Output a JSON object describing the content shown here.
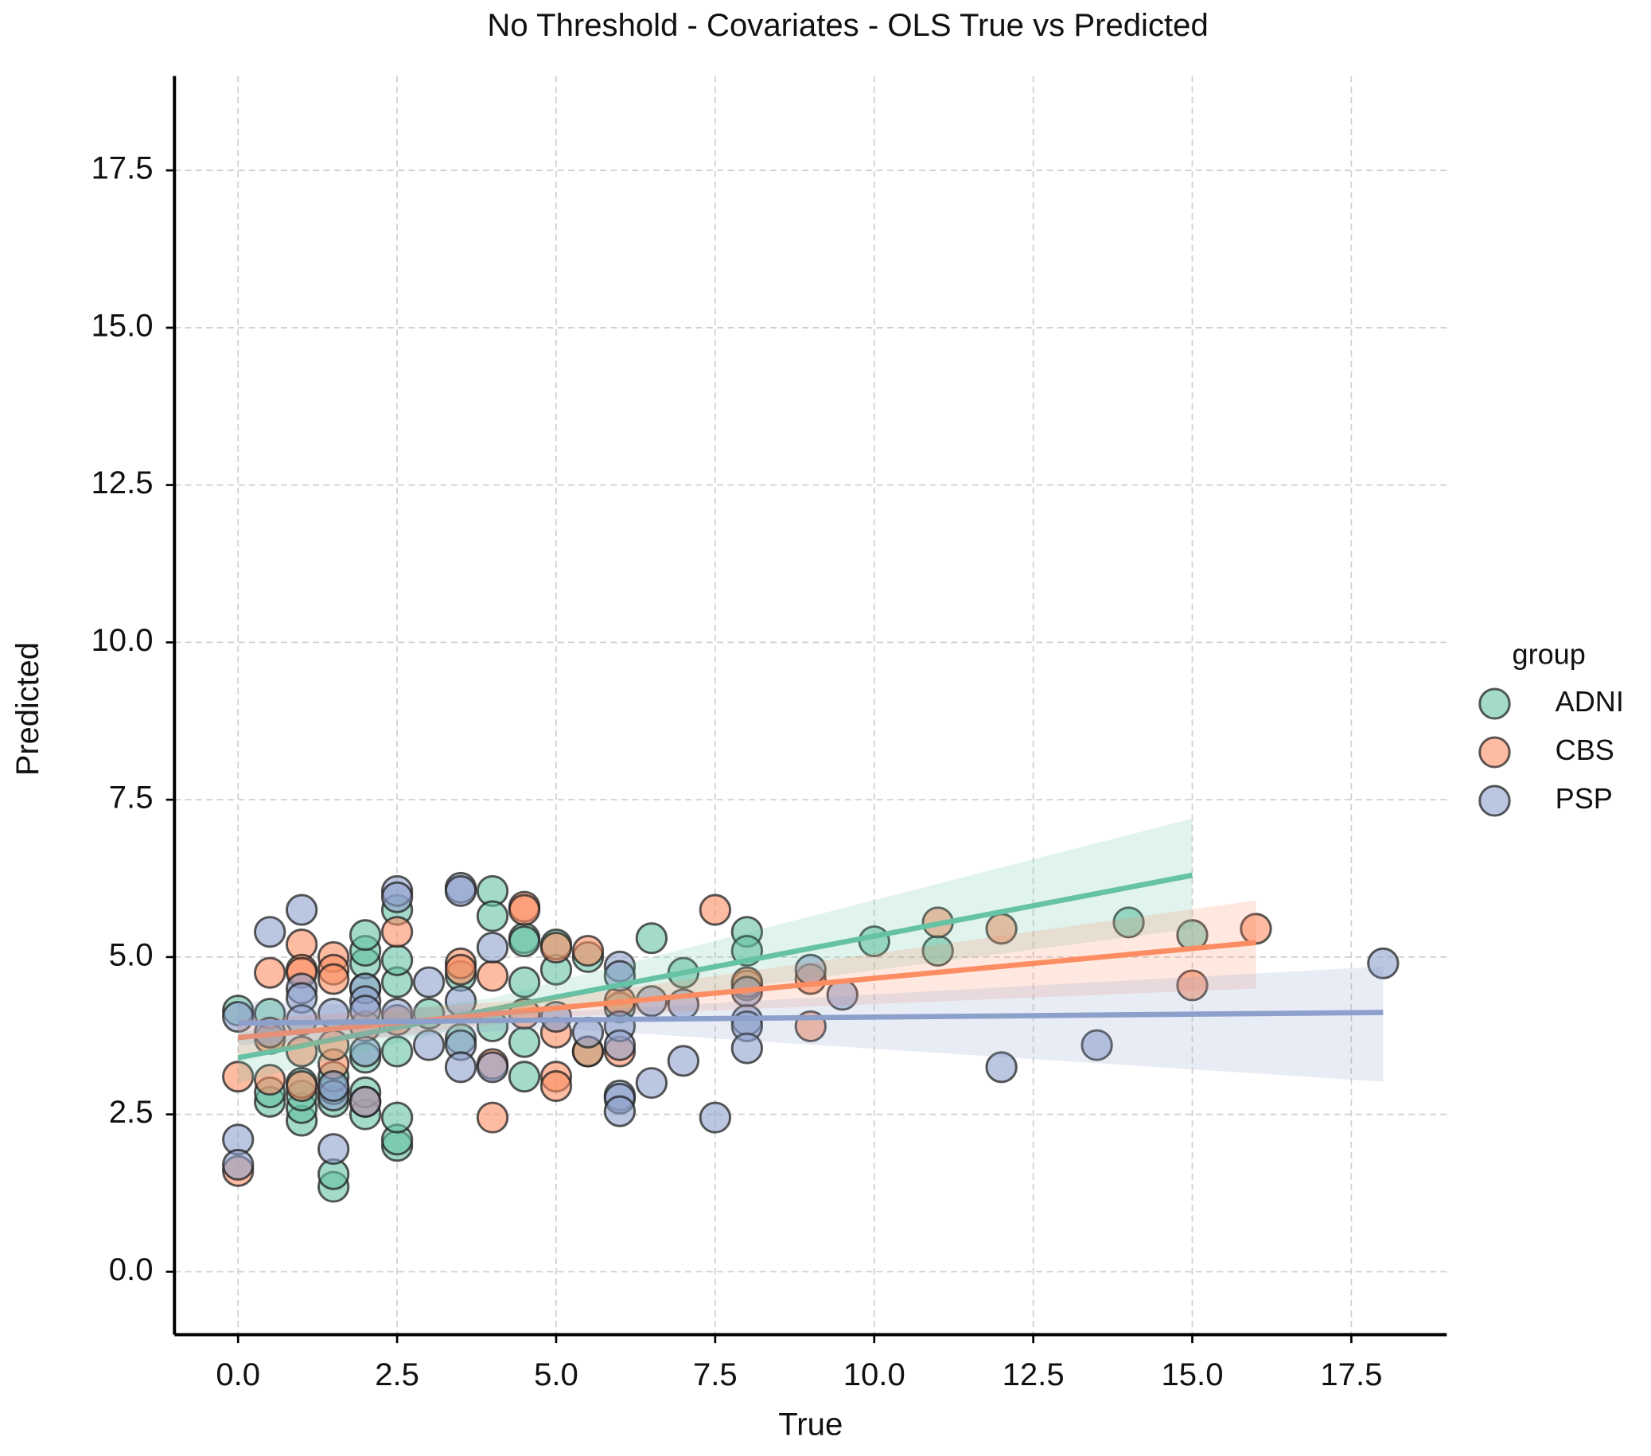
{
  "chart_data": {
    "type": "scatter",
    "title": "No Threshold - Covariates - OLS True vs Predicted",
    "x_label": "True",
    "y_label": "Predicted",
    "legend_title": "group",
    "legend_position": "right",
    "grid": true,
    "xlim": [
      -1,
      19
    ],
    "ylim": [
      -1,
      19
    ],
    "xticks": [
      {
        "value": 0,
        "label": "0.0"
      },
      2.5,
      {
        "value": 5,
        "label": "5.0"
      },
      7.5,
      {
        "value": 10,
        "label": "10.0"
      },
      12.5,
      {
        "value": 15,
        "label": "15.0"
      },
      17.5
    ],
    "yticks": [
      {
        "value": 0,
        "label": "0.0"
      },
      2.5,
      {
        "value": 5,
        "label": "5.0"
      },
      7.5,
      {
        "value": 10,
        "label": "10.0"
      },
      12.5,
      {
        "value": 15,
        "label": "15.0"
      },
      17.5
    ],
    "series": [
      {
        "name": "ADNI",
        "color": "#66c2a5",
        "x": [
          0,
          0.5,
          0.5,
          0.5,
          1,
          1,
          1,
          1,
          1.5,
          1.5,
          1.5,
          1.5,
          1.5,
          2,
          2,
          2,
          2,
          2,
          2,
          2,
          2.5,
          2.5,
          2.5,
          2.5,
          2.5,
          2.5,
          2.5,
          3,
          3.5,
          3.5,
          4,
          4,
          4,
          4.5,
          4.5,
          4.5,
          4.5,
          4.5,
          5,
          5,
          5.5,
          5.5,
          6,
          6.5,
          7,
          8,
          8,
          8,
          10,
          11,
          14,
          15
        ],
        "values": [
          4.15,
          4.1,
          2.7,
          2.85,
          2.4,
          2.6,
          2.8,
          3.0,
          1.35,
          1.55,
          2.7,
          2.9,
          3.1,
          2.5,
          2.85,
          3.4,
          4.5,
          4.9,
          5.1,
          5.35,
          2.0,
          2.1,
          2.45,
          3.5,
          4.6,
          4.95,
          5.75,
          4.1,
          4.7,
          3.7,
          6.05,
          5.65,
          3.9,
          5.3,
          5.25,
          4.6,
          3.65,
          3.1,
          4.8,
          5.2,
          5.0,
          3.5,
          4.2,
          5.3,
          4.75,
          5.4,
          5.1,
          4.55,
          5.25,
          5.1,
          5.55,
          5.35
        ],
        "fit": {
          "x": [
            0,
            4,
            15
          ],
          "y": [
            3.4,
            4.17,
            6.3
          ],
          "lower": [
            3.0,
            4.0,
            5.45
          ],
          "upper": [
            3.8,
            4.35,
            7.2
          ]
        }
      },
      {
        "name": "CBS",
        "color": "#fc8d62",
        "x": [
          0,
          0,
          0.5,
          0.5,
          0.5,
          1,
          1,
          1,
          1,
          1,
          1.5,
          1.5,
          1.5,
          1.5,
          1.5,
          2,
          2,
          2.5,
          2.5,
          3.5,
          3.5,
          4,
          4,
          4,
          4.5,
          4.5,
          4.5,
          5,
          5,
          5,
          5,
          5.5,
          5.5,
          6,
          6,
          7.5,
          8,
          9,
          9,
          11,
          12,
          15,
          16
        ],
        "values": [
          1.6,
          3.1,
          4.75,
          3.05,
          3.7,
          5.2,
          4.8,
          4.75,
          3.5,
          2.95,
          5.0,
          4.8,
          4.65,
          3.3,
          3.6,
          3.9,
          2.7,
          5.4,
          4.0,
          4.9,
          4.8,
          4.7,
          3.3,
          2.45,
          5.8,
          5.75,
          4.1,
          5.15,
          3.8,
          3.1,
          2.95,
          5.1,
          3.5,
          3.5,
          4.3,
          5.75,
          4.6,
          4.65,
          3.9,
          5.55,
          5.45,
          4.55,
          5.45
        ],
        "fit": {
          "x": [
            0,
            5,
            16
          ],
          "y": [
            3.72,
            4.19,
            5.23
          ],
          "lower": [
            3.45,
            4.05,
            4.5
          ],
          "upper": [
            4.0,
            4.35,
            5.9
          ]
        }
      },
      {
        "name": "PSP",
        "color": "#8da0cb",
        "x": [
          0,
          0,
          0,
          0.5,
          0.5,
          1,
          1,
          1,
          1,
          1.5,
          1.5,
          1.5,
          1.5,
          2,
          2,
          2,
          2,
          2,
          2.5,
          2.5,
          2.5,
          3,
          3,
          3.5,
          3.5,
          3.5,
          3.5,
          3.5,
          4,
          4,
          5,
          5.5,
          6,
          6,
          6,
          6,
          6,
          6,
          6,
          6.5,
          6.5,
          7,
          7,
          7.5,
          8,
          8,
          8,
          8,
          9,
          9.5,
          12,
          13.5,
          18
        ],
        "values": [
          4.05,
          2.1,
          1.7,
          5.4,
          3.8,
          5.75,
          4.5,
          4.35,
          4.0,
          4.1,
          2.8,
          2.95,
          1.95,
          4.5,
          4.3,
          4.15,
          3.5,
          2.7,
          6.05,
          5.95,
          4.1,
          4.6,
          3.6,
          6.1,
          6.05,
          4.3,
          3.6,
          3.25,
          5.15,
          3.25,
          4.05,
          3.8,
          4.85,
          4.7,
          3.9,
          3.6,
          2.8,
          2.75,
          2.55,
          4.3,
          3.0,
          4.25,
          3.35,
          2.45,
          4.45,
          4.0,
          3.9,
          3.55,
          4.8,
          4.4,
          3.25,
          3.6,
          4.9
        ],
        "fit": {
          "x": [
            0,
            5,
            18
          ],
          "y": [
            3.95,
            4.0,
            4.12
          ],
          "lower": [
            3.6,
            3.87,
            3.02
          ],
          "upper": [
            4.3,
            4.13,
            4.85
          ]
        }
      }
    ]
  }
}
